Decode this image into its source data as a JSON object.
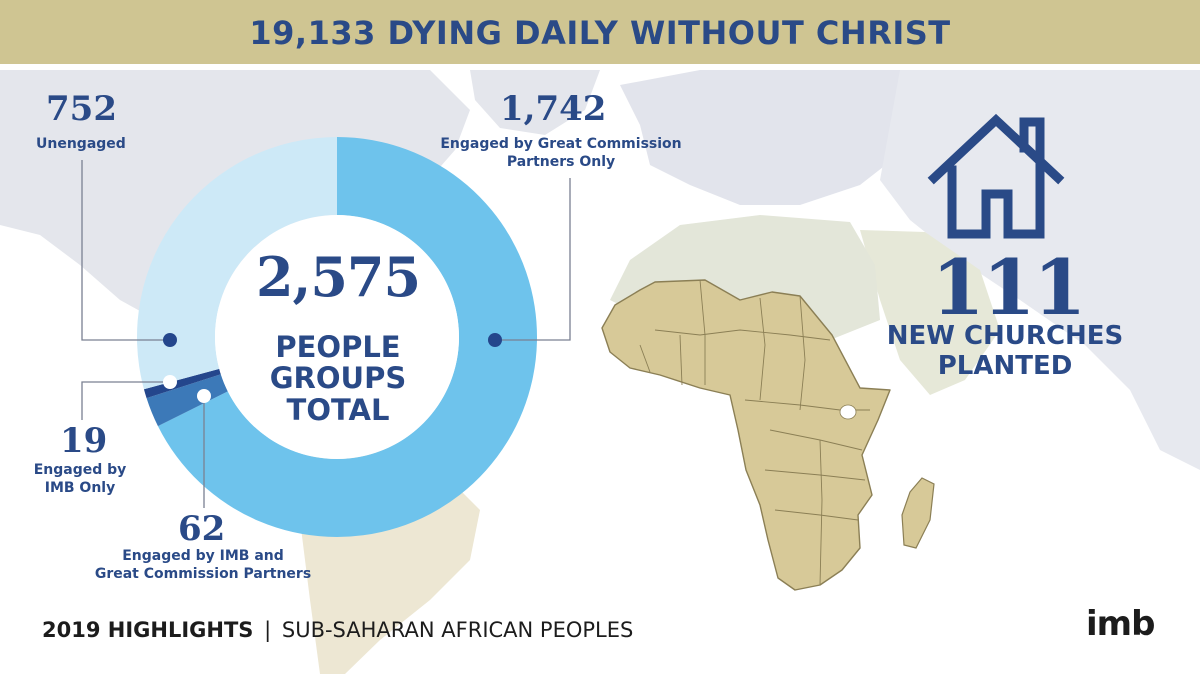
{
  "header": {
    "title": "19,133 DYING DAILY WITHOUT CHRIST"
  },
  "chart_data": {
    "type": "pie",
    "donut": true,
    "total_value": "2,575",
    "total_label_lines": [
      "PEOPLE",
      "GROUPS",
      "TOTAL"
    ],
    "slices": [
      {
        "id": "gcp",
        "value": 1742,
        "value_text": "1,742",
        "label_lines": [
          "Engaged by Great Commission",
          "Partners Only"
        ],
        "color": "#6ec3ec"
      },
      {
        "id": "imb_gcp",
        "value": 62,
        "value_text": "62",
        "label_lines": [
          "Engaged by IMB and",
          "Great Commission Partners"
        ],
        "color": "#3c79b8"
      },
      {
        "id": "imb_only",
        "value": 19,
        "value_text": "19",
        "label_lines": [
          "Engaged by",
          "IMB Only"
        ],
        "color": "#24468c"
      },
      {
        "id": "unengaged",
        "value": 752,
        "value_text": "752",
        "label_lines": [
          "Unengaged"
        ],
        "color": "#cde9f7"
      }
    ]
  },
  "churches": {
    "count": "111",
    "label_lines": [
      "NEW CHURCHES",
      "PLANTED"
    ],
    "icon": "house-icon"
  },
  "footer": {
    "bold": "2019 HIGHLIGHTS",
    "separator": "|",
    "rest": "SUB-SAHARAN AFRICAN PEOPLES"
  },
  "logo": {
    "text": "imb"
  },
  "colors": {
    "navy": "#2a4a87",
    "banner": "#cfc592",
    "africa": "#d7c998",
    "map_land": "#e4e6ec"
  }
}
